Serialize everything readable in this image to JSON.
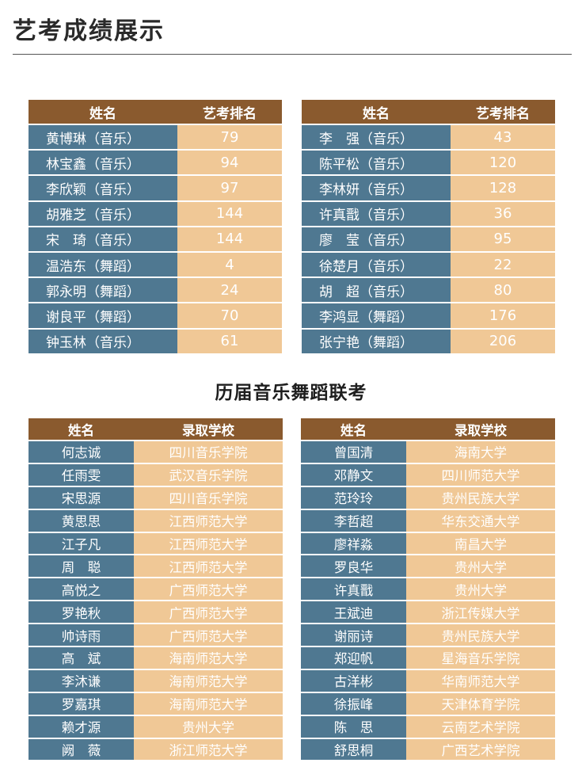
{
  "header": {
    "title": "艺考成绩展示"
  },
  "rank_tables": {
    "headers": {
      "name": "姓名",
      "rank": "艺考排名"
    },
    "left": [
      {
        "name": "黄博琳（音乐）",
        "rank": "79"
      },
      {
        "name": "林宝鑫（音乐）",
        "rank": "94"
      },
      {
        "name": "李欣颖（音乐）",
        "rank": "97"
      },
      {
        "name": "胡雅芝（音乐）",
        "rank": "144"
      },
      {
        "name": "宋　琦（音乐）",
        "rank": "144"
      },
      {
        "name": "温浩东（舞蹈）",
        "rank": "4"
      },
      {
        "name": "郭永明（舞蹈）",
        "rank": "24"
      },
      {
        "name": "谢良平（舞蹈）",
        "rank": "70"
      },
      {
        "name": "钟玉林（音乐）",
        "rank": "61"
      }
    ],
    "right": [
      {
        "name": "李　强（音乐）",
        "rank": "43"
      },
      {
        "name": "陈平松（音乐）",
        "rank": "120"
      },
      {
        "name": "李林妍（音乐）",
        "rank": "128"
      },
      {
        "name": "许真戬（音乐）",
        "rank": "36"
      },
      {
        "name": "廖　莹（音乐）",
        "rank": "95"
      },
      {
        "name": "徐楚月（音乐）",
        "rank": "22"
      },
      {
        "name": "胡　超（音乐）",
        "rank": "80"
      },
      {
        "name": "李鸿显（舞蹈）",
        "rank": "176"
      },
      {
        "name": "张宁艳（舞蹈）",
        "rank": "206"
      }
    ]
  },
  "section2": {
    "title": "历届音乐舞蹈联考"
  },
  "admission_tables": {
    "headers": {
      "name": "姓名",
      "school": "录取学校"
    },
    "left": [
      {
        "name": "何志诚",
        "school": "四川音乐学院"
      },
      {
        "name": "任雨雯",
        "school": "武汉音乐学院"
      },
      {
        "name": "宋思源",
        "school": "四川音乐学院"
      },
      {
        "name": "黄思思",
        "school": "江西师范大学"
      },
      {
        "name": "江子凡",
        "school": "江西师范大学"
      },
      {
        "name": "周　聪",
        "school": "江西师范大学"
      },
      {
        "name": "高悦之",
        "school": "广西师范大学"
      },
      {
        "name": "罗艳秋",
        "school": "广西师范大学"
      },
      {
        "name": "帅诗雨",
        "school": "广西师范大学"
      },
      {
        "name": "高　斌",
        "school": "海南师范大学"
      },
      {
        "name": "李沐谦",
        "school": "海南师范大学"
      },
      {
        "name": "罗嘉琪",
        "school": "海南师范大学"
      },
      {
        "name": "赖才源",
        "school": "贵州大学"
      },
      {
        "name": "阙　薇",
        "school": "浙江师范大学"
      }
    ],
    "right": [
      {
        "name": "曾国清",
        "school": "海南大学"
      },
      {
        "name": "邓静文",
        "school": "四川师范大学"
      },
      {
        "name": "范玲玲",
        "school": "贵州民族大学"
      },
      {
        "name": "李哲超",
        "school": "华东交通大学"
      },
      {
        "name": "廖祥淼",
        "school": "南昌大学"
      },
      {
        "name": "罗良华",
        "school": "贵州大学"
      },
      {
        "name": "许真戬",
        "school": "贵州大学"
      },
      {
        "name": "王斌迪",
        "school": "浙江传媒大学"
      },
      {
        "name": "谢丽诗",
        "school": "贵州民族大学"
      },
      {
        "name": "郑迎帆",
        "school": "星海音乐学院"
      },
      {
        "name": "古洋彬",
        "school": "华南师范大学"
      },
      {
        "name": "徐振峰",
        "school": "天津体育学院"
      },
      {
        "name": "陈　思",
        "school": "云南艺术学院"
      },
      {
        "name": "舒思桐",
        "school": "广西艺术学院"
      }
    ]
  },
  "colors": {
    "header_brown": "#8a5a2e",
    "name_cell_blue": "#4f7891",
    "value_cell_tan": "#f0c896"
  }
}
